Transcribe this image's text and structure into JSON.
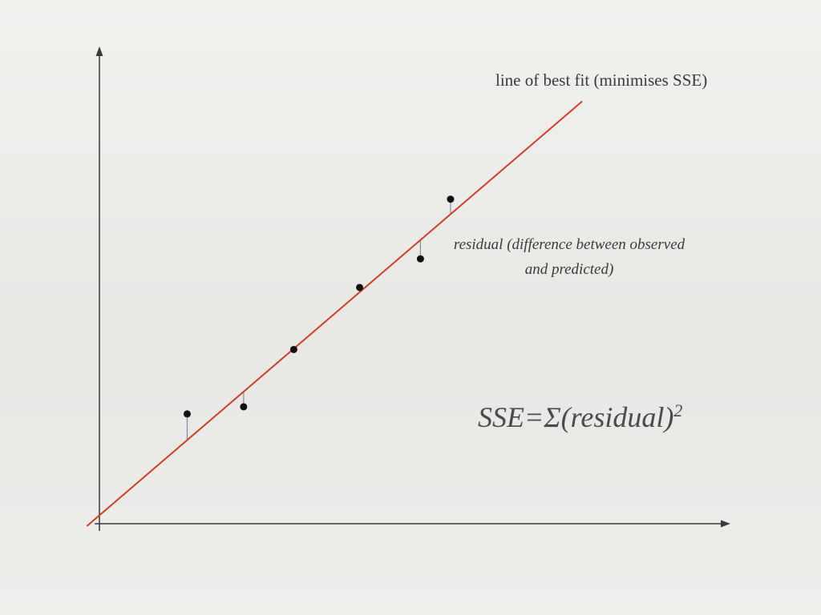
{
  "colors": {
    "axis": "#3a3a3a",
    "fit_line": "#c8402a",
    "points": "#111111",
    "residuals": "#8a86a8"
  },
  "chart_data": {
    "type": "scatter",
    "title": "",
    "xlabel": "",
    "ylabel": "",
    "xlim": [
      0,
      100
    ],
    "ylim": [
      0,
      100
    ],
    "grid": false,
    "points": {
      "x": [
        14,
        23,
        31,
        41.5,
        51.2,
        56
      ],
      "y": [
        23,
        24.5,
        36.5,
        49.5,
        55.5,
        68
      ]
    },
    "fit_line": {
      "x": [
        -2,
        77
      ],
      "y": [
        -0.5,
        88.5
      ]
    },
    "annotations": {
      "fit_line": "line of best fit (minimises SSE)",
      "residual": "residual (difference between observed and predicted)",
      "formula_base": "SSE=Σ(residual)",
      "formula_exp": "2"
    }
  }
}
